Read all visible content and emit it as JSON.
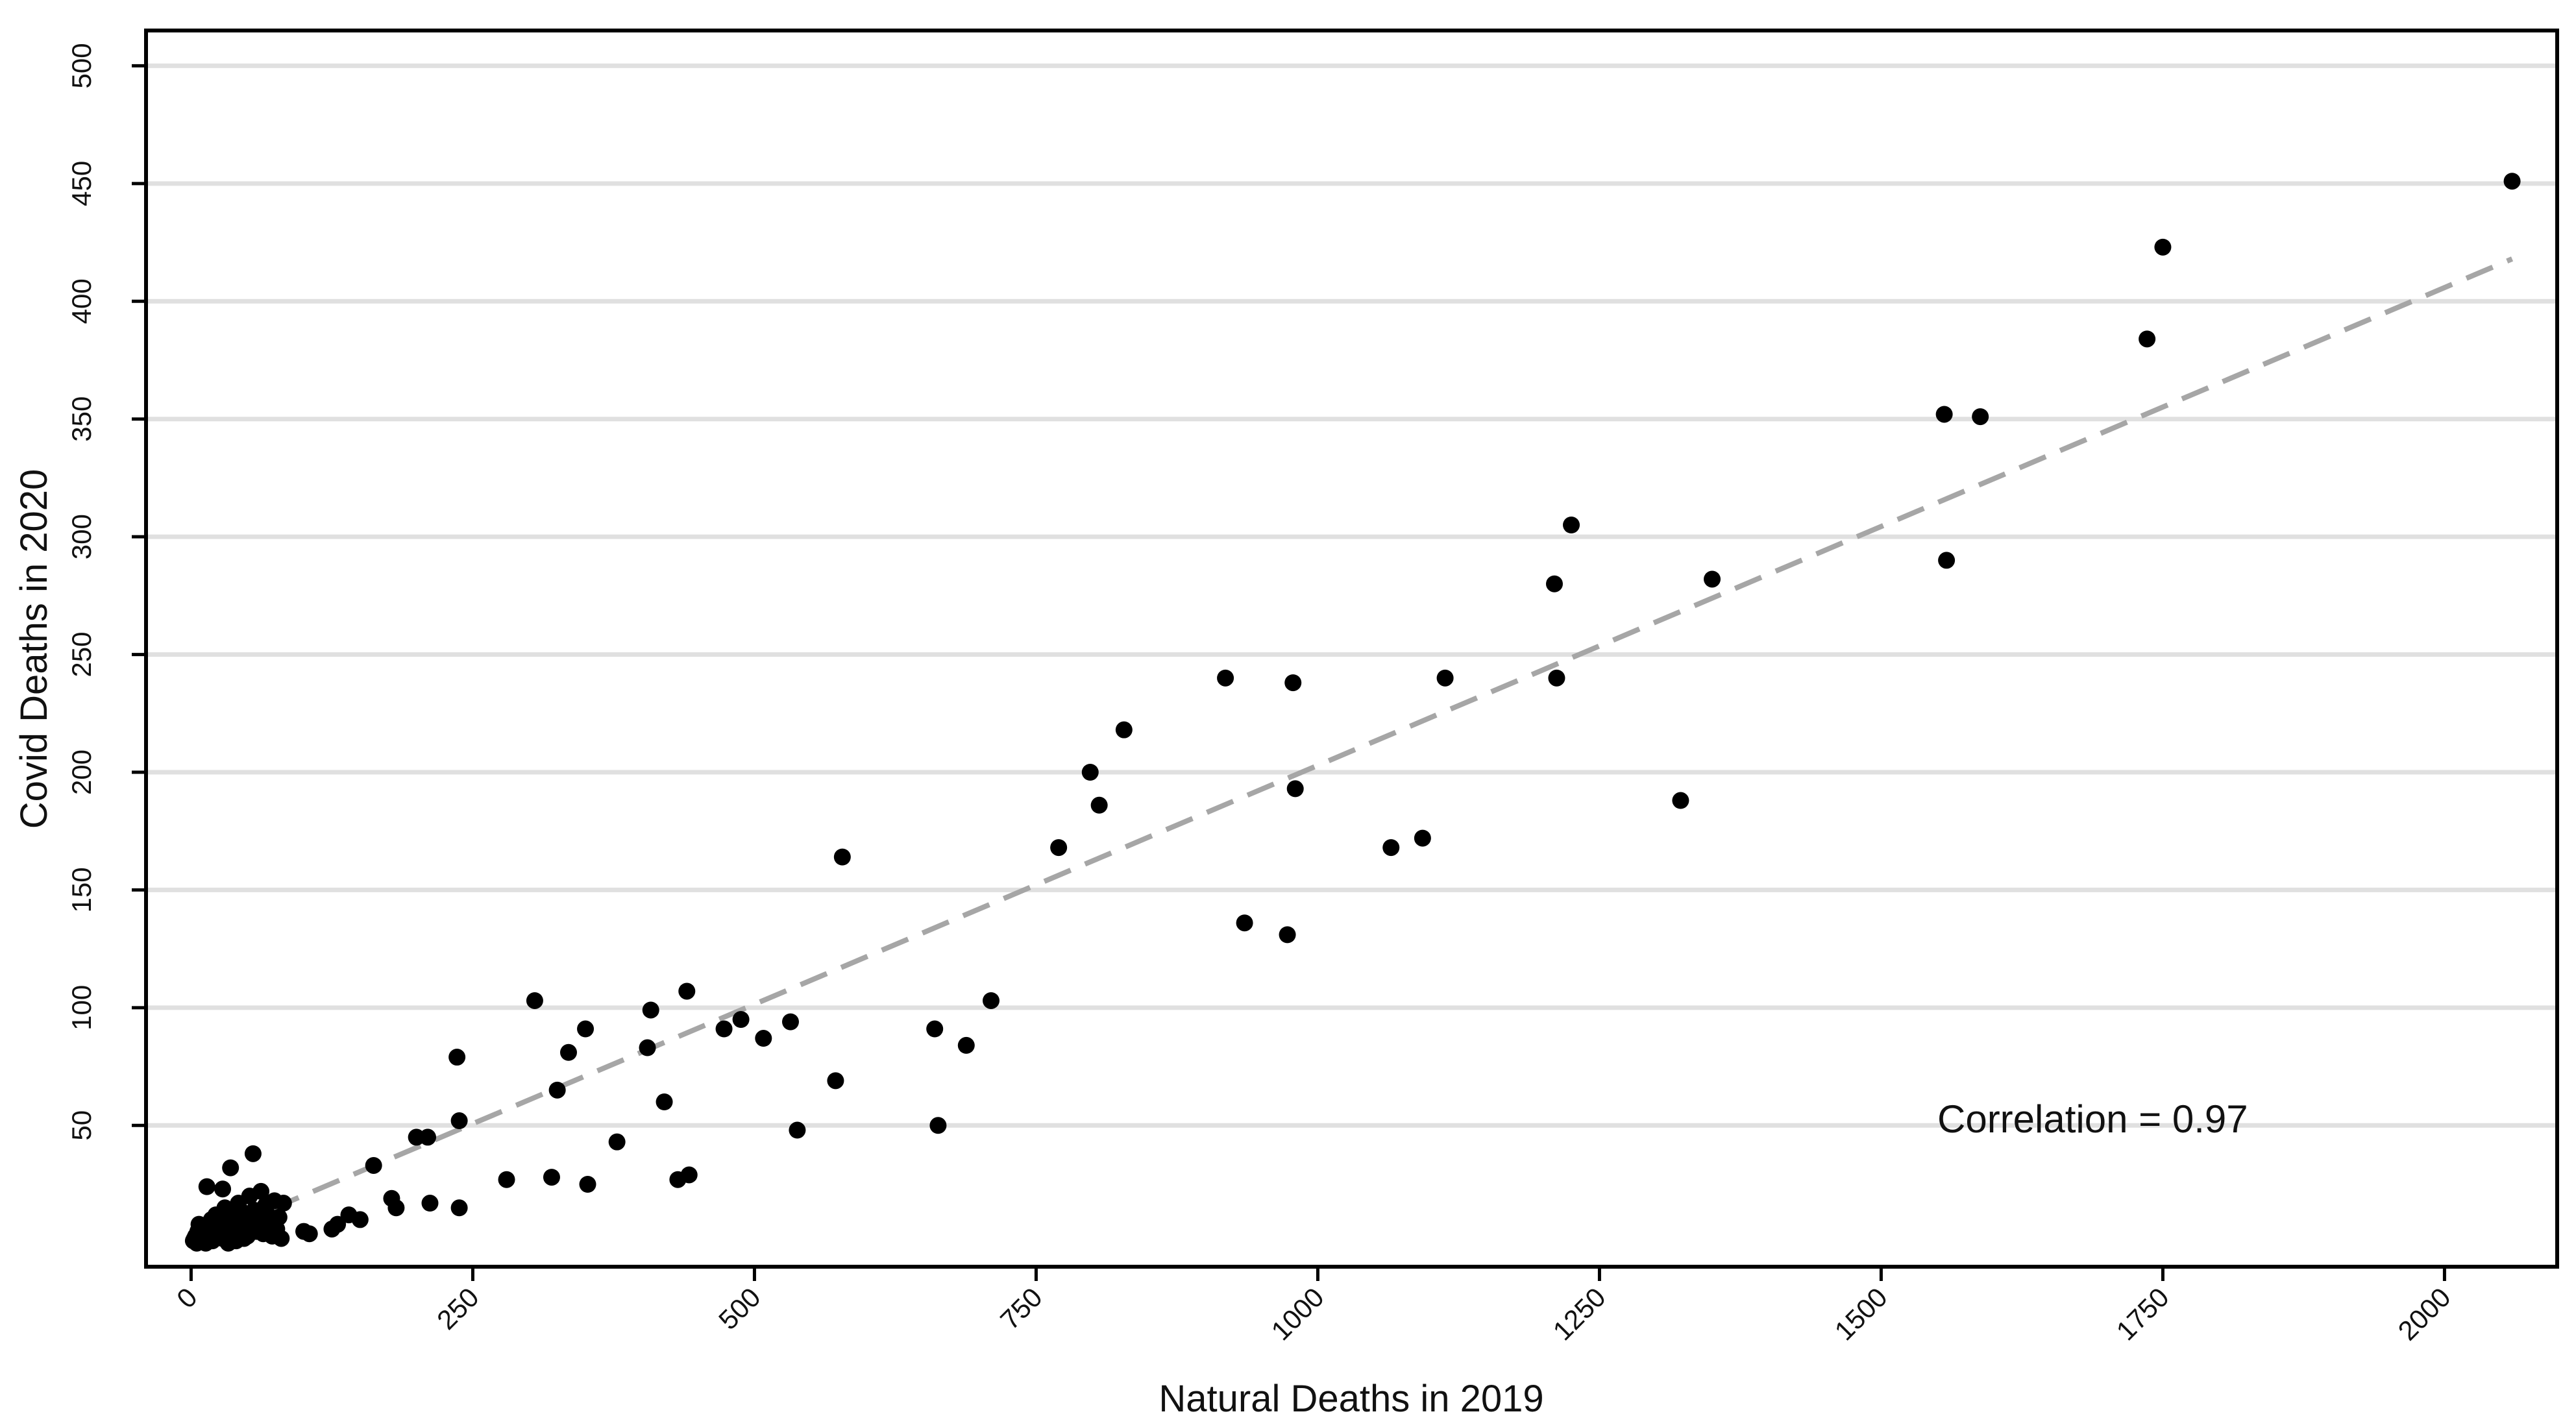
{
  "chart_data": {
    "type": "scatter",
    "title": "",
    "xlabel": "Natural Deaths in 2019",
    "ylabel": "Covid Deaths in 2020",
    "xlim": [
      -40,
      2100
    ],
    "ylim": [
      -10,
      515
    ],
    "x_ticks": [
      0,
      250,
      500,
      750,
      1000,
      1250,
      1500,
      1750,
      2000
    ],
    "y_ticks": [
      50,
      100,
      150,
      200,
      250,
      300,
      350,
      400,
      450,
      500
    ],
    "x_tick_labels": [
      "0",
      "250",
      "500",
      "750",
      "1000",
      "1250",
      "1500",
      "1750",
      "2000"
    ],
    "y_tick_labels": [
      "50",
      "100",
      "150",
      "200",
      "250",
      "300",
      "350",
      "400",
      "450",
      "500"
    ],
    "grid": {
      "horizontal": true,
      "vertical": false,
      "color": "#e0e0e0"
    },
    "point_color": "#000000",
    "trendline": {
      "style": "dashed",
      "color": "#a6a6a6",
      "x": [
        0,
        2060
      ],
      "y": [
        0,
        418
      ]
    },
    "annotation": {
      "text": "Correlation = 0.97",
      "x": 1550,
      "y": 50
    },
    "points": [
      {
        "x": 2,
        "y": 1
      },
      {
        "x": 4,
        "y": 3
      },
      {
        "x": 6,
        "y": 5
      },
      {
        "x": 3,
        "y": 2
      },
      {
        "x": 8,
        "y": 2
      },
      {
        "x": 10,
        "y": 4
      },
      {
        "x": 12,
        "y": 7
      },
      {
        "x": 7,
        "y": 8
      },
      {
        "x": 15,
        "y": 2
      },
      {
        "x": 16,
        "y": 5
      },
      {
        "x": 18,
        "y": 10
      },
      {
        "x": 20,
        "y": 3
      },
      {
        "x": 22,
        "y": 12
      },
      {
        "x": 24,
        "y": 6
      },
      {
        "x": 26,
        "y": 9
      },
      {
        "x": 28,
        "y": 2
      },
      {
        "x": 30,
        "y": 15
      },
      {
        "x": 32,
        "y": 7
      },
      {
        "x": 34,
        "y": 4
      },
      {
        "x": 36,
        "y": 11
      },
      {
        "x": 38,
        "y": 8
      },
      {
        "x": 40,
        "y": 1
      },
      {
        "x": 42,
        "y": 17
      },
      {
        "x": 44,
        "y": 6
      },
      {
        "x": 46,
        "y": 13
      },
      {
        "x": 48,
        "y": 9
      },
      {
        "x": 50,
        "y": 3
      },
      {
        "x": 52,
        "y": 20
      },
      {
        "x": 54,
        "y": 7
      },
      {
        "x": 56,
        "y": 14
      },
      {
        "x": 58,
        "y": 5
      },
      {
        "x": 60,
        "y": 10
      },
      {
        "x": 62,
        "y": 22
      },
      {
        "x": 64,
        "y": 4
      },
      {
        "x": 66,
        "y": 16
      },
      {
        "x": 68,
        "y": 12
      },
      {
        "x": 70,
        "y": 8
      },
      {
        "x": 72,
        "y": 3
      },
      {
        "x": 74,
        "y": 18
      },
      {
        "x": 76,
        "y": 6
      },
      {
        "x": 78,
        "y": 11
      },
      {
        "x": 80,
        "y": 2
      },
      {
        "x": 82,
        "y": 17
      },
      {
        "x": 5,
        "y": 0
      },
      {
        "x": 9,
        "y": 1
      },
      {
        "x": 13,
        "y": 0
      },
      {
        "x": 19,
        "y": 1
      },
      {
        "x": 25,
        "y": 3
      },
      {
        "x": 33,
        "y": 0
      },
      {
        "x": 47,
        "y": 2
      },
      {
        "x": 14,
        "y": 24
      },
      {
        "x": 28,
        "y": 23
      },
      {
        "x": 35,
        "y": 32
      },
      {
        "x": 55,
        "y": 38
      },
      {
        "x": 100,
        "y": 5
      },
      {
        "x": 105,
        "y": 4
      },
      {
        "x": 125,
        "y": 6
      },
      {
        "x": 130,
        "y": 8
      },
      {
        "x": 140,
        "y": 12
      },
      {
        "x": 150,
        "y": 10
      },
      {
        "x": 162,
        "y": 33
      },
      {
        "x": 178,
        "y": 19
      },
      {
        "x": 182,
        "y": 15
      },
      {
        "x": 200,
        "y": 45
      },
      {
        "x": 210,
        "y": 45
      },
      {
        "x": 212,
        "y": 17
      },
      {
        "x": 236,
        "y": 79
      },
      {
        "x": 238,
        "y": 52
      },
      {
        "x": 238,
        "y": 15
      },
      {
        "x": 280,
        "y": 27
      },
      {
        "x": 305,
        "y": 103
      },
      {
        "x": 320,
        "y": 28
      },
      {
        "x": 325,
        "y": 65
      },
      {
        "x": 335,
        "y": 81
      },
      {
        "x": 350,
        "y": 91
      },
      {
        "x": 352,
        "y": 25
      },
      {
        "x": 378,
        "y": 43
      },
      {
        "x": 405,
        "y": 83
      },
      {
        "x": 408,
        "y": 99
      },
      {
        "x": 420,
        "y": 60
      },
      {
        "x": 432,
        "y": 27
      },
      {
        "x": 440,
        "y": 107
      },
      {
        "x": 442,
        "y": 29
      },
      {
        "x": 473,
        "y": 91
      },
      {
        "x": 488,
        "y": 95
      },
      {
        "x": 508,
        "y": 87
      },
      {
        "x": 532,
        "y": 94
      },
      {
        "x": 538,
        "y": 48
      },
      {
        "x": 572,
        "y": 69
      },
      {
        "x": 578,
        "y": 164
      },
      {
        "x": 660,
        "y": 91
      },
      {
        "x": 663,
        "y": 50
      },
      {
        "x": 688,
        "y": 84
      },
      {
        "x": 710,
        "y": 103
      },
      {
        "x": 770,
        "y": 168
      },
      {
        "x": 798,
        "y": 200
      },
      {
        "x": 806,
        "y": 186
      },
      {
        "x": 828,
        "y": 218
      },
      {
        "x": 918,
        "y": 240
      },
      {
        "x": 935,
        "y": 136
      },
      {
        "x": 973,
        "y": 131
      },
      {
        "x": 978,
        "y": 238
      },
      {
        "x": 980,
        "y": 193
      },
      {
        "x": 1065,
        "y": 168
      },
      {
        "x": 1093,
        "y": 172
      },
      {
        "x": 1113,
        "y": 240
      },
      {
        "x": 1210,
        "y": 280
      },
      {
        "x": 1212,
        "y": 240
      },
      {
        "x": 1225,
        "y": 305
      },
      {
        "x": 1322,
        "y": 188
      },
      {
        "x": 1350,
        "y": 282
      },
      {
        "x": 1556,
        "y": 352
      },
      {
        "x": 1558,
        "y": 290
      },
      {
        "x": 1588,
        "y": 351
      },
      {
        "x": 1736,
        "y": 384
      },
      {
        "x": 1750,
        "y": 423
      },
      {
        "x": 2060,
        "y": 451
      }
    ]
  }
}
